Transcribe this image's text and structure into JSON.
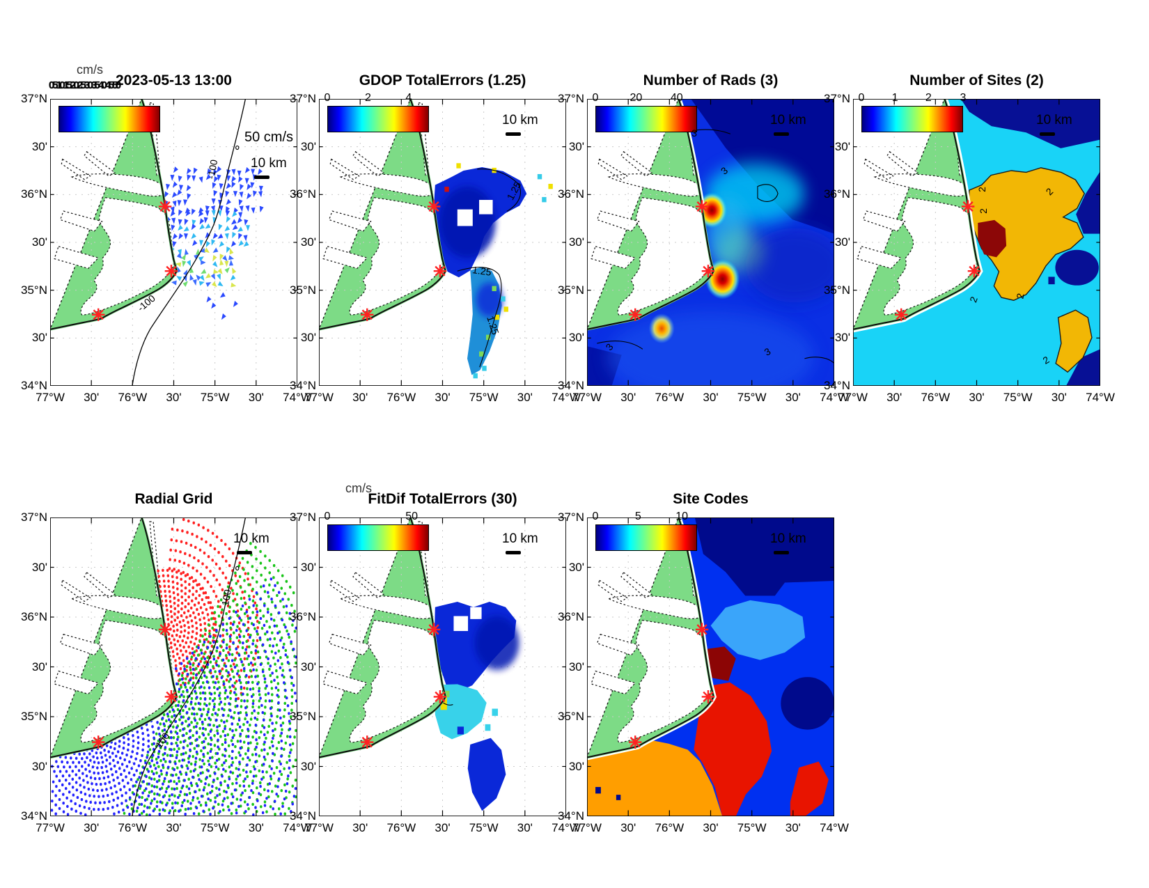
{
  "figure": {
    "background": "#ffffff"
  },
  "shared": {
    "x_tick_labels": [
      "77°W",
      "30'",
      "76°W",
      "30'",
      "75°W",
      "30'",
      "74°W"
    ],
    "y_tick_labels": [
      "37°N",
      "30'",
      "36°N",
      "30'",
      "35°N",
      "30'",
      "34°N"
    ],
    "scale_bar_label": "10 km",
    "land_color": "#7ddb86",
    "coast_color": "#111111",
    "grid_color": "#c9c9c9",
    "site_marker_color": "#ff2121",
    "jet_stops": [
      [
        "#00007f",
        0
      ],
      [
        "#0000ff",
        11
      ],
      [
        "#00ffff",
        34
      ],
      [
        "#7fff7f",
        50
      ],
      [
        "#ffff00",
        66
      ],
      [
        "#ff0000",
        89
      ],
      [
        "#7f0000",
        100
      ]
    ]
  },
  "panels": {
    "current": {
      "title": "2023-05-13 13:00",
      "units_label": "cm/s",
      "colorbar_overlapped_ticks": "0 5 10 15 20 25 30 35 40 45 50",
      "vector_scale_label": "50 cm/s",
      "contour_labels": [
        "-100",
        "-100"
      ]
    },
    "gdop": {
      "title": "GDOP TotalErrors (1.25)",
      "colorbar_ticks": [
        {
          "label": "0",
          "pos": 0
        },
        {
          "label": "2",
          "pos": 0.4
        },
        {
          "label": "4",
          "pos": 0.8
        }
      ],
      "contour_labels": [
        "1.25",
        "1.25",
        "1.25"
      ]
    },
    "numrads": {
      "title": "Number of Rads (3)",
      "colorbar_ticks": [
        {
          "label": "0",
          "pos": 0
        },
        {
          "label": "20",
          "pos": 0.4
        },
        {
          "label": "40",
          "pos": 0.8
        }
      ],
      "contour_labels": [
        "3",
        "3",
        "3",
        "3"
      ]
    },
    "numsites": {
      "title": "Number of Sites (2)",
      "colorbar_ticks": [
        {
          "label": "0",
          "pos": 0
        },
        {
          "label": "1",
          "pos": 0.33
        },
        {
          "label": "2",
          "pos": 0.66
        },
        {
          "label": "3",
          "pos": 1
        }
      ],
      "contour_labels": [
        "2",
        "2",
        "2",
        "2",
        "2",
        "2"
      ]
    },
    "radialgrid": {
      "title": "Radial Grid",
      "contour_labels": [
        "100",
        "100"
      ]
    },
    "fitdif": {
      "title": "FitDif TotalErrors (30)",
      "units_label": "cm/s",
      "colorbar_ticks": [
        {
          "label": "0",
          "pos": 0
        },
        {
          "label": "50",
          "pos": 0.83
        }
      ]
    },
    "sitecodes": {
      "title": "Site Codes",
      "colorbar_ticks": [
        {
          "label": "0",
          "pos": 0
        },
        {
          "label": "5",
          "pos": 0.42
        },
        {
          "label": "10",
          "pos": 0.85
        }
      ]
    }
  },
  "map": {
    "sites": [
      {
        "fx": 0.465,
        "fy": 0.375
      },
      {
        "fx": 0.49,
        "fy": 0.6
      },
      {
        "fx": 0.195,
        "fy": 0.752
      }
    ],
    "radial_fan_colors": [
      "#ff2020",
      "#18c418",
      "#2222ff"
    ],
    "vector_field_colors": {
      "offshore_blue": "#2a49ff",
      "nearshore_cyan": "#2fb9f2",
      "south_mix": [
        "#2fb9f2",
        "#6fdc6f",
        "#d9e64d",
        "#3b6bff"
      ],
      "single_red": "#e82020"
    }
  },
  "palette": {
    "heat_base": "#0a2fe4",
    "heat_navy": "#000a96",
    "heat_mid_dark": "#0726c8",
    "heat_cyan": "#00cdf2",
    "heat_sw_blue": "#1e5af0",
    "sites_one_cyan": "#19d3f7",
    "sites_zero_navy": "#071095",
    "sites_two_gold": "#f2b705",
    "sites_three_darkred": "#8c0707",
    "codes_blue": "#0030f0",
    "codes_navy": "#000a8c",
    "codes_lightblue": "#3aa5fa",
    "codes_darkred": "#8c0505",
    "codes_red": "#e81400",
    "codes_orange": "#ff9e00",
    "blob_blue": "#0a28d8",
    "blob_dark": "#0617b0",
    "blob_cyan": "#38d2ea",
    "blob_teal": "#1f8fd8",
    "cell_yellow": "#f0e000",
    "cell_green": "#7cd95c",
    "cell_cyan": "#35cbe8",
    "cell_red": "#cc1010"
  },
  "chart_data": [
    {
      "type": "heatmap",
      "title": "2023-05-13 13:00",
      "subtype": "vector-map",
      "colorbar_units": "cm/s",
      "colorbar_ticks": [
        0,
        5,
        10,
        15,
        20,
        25,
        30,
        35,
        40,
        45,
        50
      ],
      "vector_scale": "50 cm/s",
      "depth_contour": -100,
      "x_range": [
        "77°W",
        "74°W"
      ],
      "y_range": [
        "34°N",
        "37°N"
      ],
      "legend_position": "inside-top-left"
    },
    {
      "type": "heatmap",
      "title": "GDOP TotalErrors (1.25)",
      "colorbar_ticks": [
        0,
        2,
        4
      ],
      "contour_level": 1.25,
      "x_range": [
        "77°W",
        "74°W"
      ],
      "y_range": [
        "34°N",
        "37°N"
      ]
    },
    {
      "type": "heatmap",
      "title": "Number of Rads (3)",
      "colorbar_ticks": [
        0,
        20,
        40
      ],
      "contour_level": 3,
      "x_range": [
        "77°W",
        "74°W"
      ],
      "y_range": [
        "34°N",
        "37°N"
      ]
    },
    {
      "type": "heatmap",
      "title": "Number of Sites (2)",
      "colorbar_ticks": [
        0,
        1,
        2,
        3
      ],
      "contour_level": 2,
      "x_range": [
        "77°W",
        "74°W"
      ],
      "y_range": [
        "34°N",
        "37°N"
      ]
    },
    {
      "type": "scatter",
      "title": "Radial Grid",
      "series": [
        {
          "name": "site-1-radials",
          "color": "#ff2020"
        },
        {
          "name": "site-2-radials",
          "color": "#18c418"
        },
        {
          "name": "site-3-radials",
          "color": "#2222ff"
        }
      ],
      "depth_contour": 100,
      "x_range": [
        "77°W",
        "74°W"
      ],
      "y_range": [
        "34°N",
        "37°N"
      ]
    },
    {
      "type": "heatmap",
      "title": "FitDif TotalErrors (30)",
      "colorbar_units": "cm/s",
      "colorbar_ticks": [
        0,
        50
      ],
      "x_range": [
        "77°W",
        "74°W"
      ],
      "y_range": [
        "34°N",
        "37°N"
      ]
    },
    {
      "type": "heatmap",
      "title": "Site Codes",
      "colorbar_ticks": [
        0,
        5,
        10
      ],
      "x_range": [
        "77°W",
        "74°W"
      ],
      "y_range": [
        "34°N",
        "37°N"
      ]
    }
  ]
}
